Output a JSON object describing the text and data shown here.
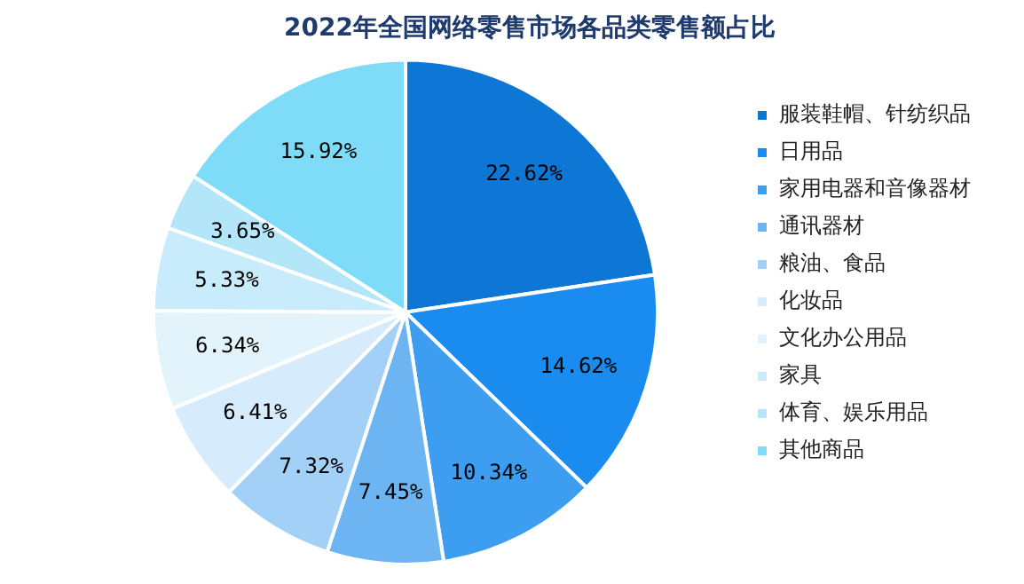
{
  "chart_data": {
    "type": "pie",
    "title": "2022年全国网络零售市场各品类零售额占比",
    "categories": [
      "服装鞋帽、针纺织品",
      "日用品",
      "家用电器和音像器材",
      "通讯器材",
      "粮油、食品",
      "化妆品",
      "文化办公用品",
      "家具",
      "体育、娱乐用品",
      "其他商品"
    ],
    "values": [
      22.62,
      14.62,
      10.34,
      7.45,
      7.32,
      6.41,
      6.34,
      5.33,
      3.65,
      15.92
    ],
    "colors": [
      "#0e76d4",
      "#1a8cf0",
      "#3d9df0",
      "#6cb4f2",
      "#a3d0f7",
      "#d6ebfb",
      "#e2f3fc",
      "#c8ecfb",
      "#b3e6f8",
      "#7fdcf8"
    ],
    "value_labels": [
      "22.62%",
      "14.62%",
      "10.34%",
      "7.45%",
      "7.32%",
      "6.41%",
      "6.34%",
      "5.33%",
      "3.65%",
      "15.92%"
    ],
    "legend": "right"
  }
}
